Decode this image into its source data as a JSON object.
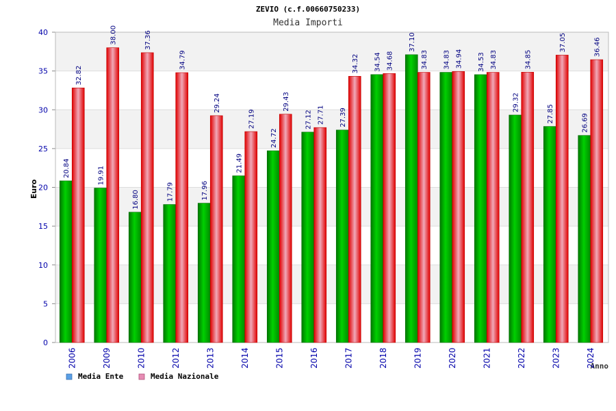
{
  "chart_data": {
    "type": "bar",
    "title": "ZEVIO (c.f.00660750233)",
    "subtitle": "Media Importi",
    "xlabel": "Anno",
    "ylabel": "Euro",
    "ylim": [
      0,
      40
    ],
    "yticks": [
      0,
      5,
      10,
      15,
      20,
      25,
      30,
      35,
      40
    ],
    "grid": "horizontal-bands",
    "legend_position": "bottom-left",
    "categories": [
      "2006",
      "2009",
      "2010",
      "2012",
      "2013",
      "2014",
      "2015",
      "2016",
      "2017",
      "2018",
      "2019",
      "2020",
      "2021",
      "2022",
      "2023",
      "2024"
    ],
    "series": [
      {
        "name": "Media Ente",
        "legend_color": "#5aa0e6",
        "bar_color": "#00b400",
        "values": [
          20.84,
          19.91,
          16.8,
          17.79,
          17.96,
          21.49,
          24.72,
          27.12,
          27.39,
          34.54,
          37.1,
          34.83,
          34.53,
          29.32,
          27.85,
          26.69
        ],
        "labels": [
          "20.84",
          "19.91",
          "16.80",
          "17.79",
          "17.96",
          "21.49",
          "24.72",
          "27.12",
          "27.39",
          "34.54",
          "37.10",
          "34.83",
          "34.53",
          "29.32",
          "27.85",
          "26.69"
        ]
      },
      {
        "name": "Media Nazionale",
        "legend_color": "#e68cb4",
        "bar_color": "#e60000",
        "values": [
          32.82,
          38.0,
          37.36,
          34.79,
          29.24,
          27.19,
          29.43,
          27.71,
          34.32,
          34.68,
          34.83,
          34.94,
          34.83,
          34.85,
          37.05,
          36.46
        ],
        "labels": [
          "32.82",
          "38.00",
          "37.36",
          "34.79",
          "29.24",
          "27.19",
          "29.43",
          "27.71",
          "34.32",
          "34.68",
          "34.83",
          "34.94",
          "34.83",
          "34.85",
          "37.05",
          "36.46"
        ]
      }
    ],
    "colors": {
      "axis_text": "#0000aa",
      "value_label": "#000080",
      "title": "#000000",
      "subtitle": "#333333",
      "band": "#f2f2f2",
      "gridline": "#dddddd",
      "frame": "#bbbbbb"
    }
  }
}
